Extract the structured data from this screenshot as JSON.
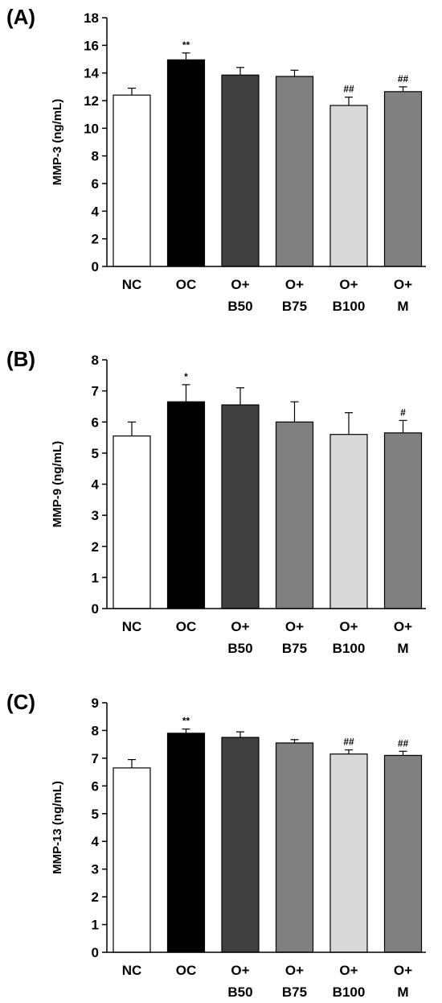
{
  "chart_data": [
    {
      "type": "bar",
      "panel_label": "(A)",
      "ylabel": "MMP-3  (ng/mL)",
      "ylim": [
        0,
        18
      ],
      "ytick_step": 2,
      "yticks": [
        "0",
        "2",
        "4",
        "6",
        "8",
        "10",
        "12",
        "14",
        "16",
        "18"
      ],
      "categories": [
        [
          "NC"
        ],
        [
          "OC"
        ],
        [
          "O+",
          "B50"
        ],
        [
          "O+",
          "B75"
        ],
        [
          "O+",
          "B100"
        ],
        [
          "O+",
          "M"
        ]
      ],
      "values": [
        12.4,
        14.95,
        13.85,
        13.75,
        11.65,
        12.65
      ],
      "errors": [
        0.5,
        0.5,
        0.55,
        0.45,
        0.6,
        0.35
      ],
      "annotations": [
        "",
        "**",
        "",
        "",
        "##",
        "##"
      ],
      "colors": [
        "#ffffff",
        "#000000",
        "#404040",
        "#808080",
        "#d9d9d9",
        "#808080"
      ]
    },
    {
      "type": "bar",
      "panel_label": "(B)",
      "ylabel": "MMP-9  (ng/mL)",
      "ylim": [
        0,
        8
      ],
      "ytick_step": 1,
      "yticks": [
        "0",
        "1",
        "2",
        "3",
        "4",
        "5",
        "6",
        "7",
        "8"
      ],
      "categories": [
        [
          "NC"
        ],
        [
          "OC"
        ],
        [
          "O+",
          "B50"
        ],
        [
          "O+",
          "B75"
        ],
        [
          "O+",
          "B100"
        ],
        [
          "O+",
          "M"
        ]
      ],
      "values": [
        5.55,
        6.65,
        6.55,
        6.0,
        5.6,
        5.65
      ],
      "errors": [
        0.45,
        0.55,
        0.55,
        0.65,
        0.7,
        0.4
      ],
      "annotations": [
        "",
        "*",
        "",
        "",
        "",
        "#"
      ],
      "colors": [
        "#ffffff",
        "#000000",
        "#404040",
        "#808080",
        "#d9d9d9",
        "#808080"
      ]
    },
    {
      "type": "bar",
      "panel_label": "(C)",
      "ylabel": "MMP-13  (ng/mL)",
      "ylim": [
        0,
        9
      ],
      "ytick_step": 1,
      "yticks": [
        "0",
        "1",
        "2",
        "3",
        "4",
        "5",
        "6",
        "7",
        "8",
        "9"
      ],
      "categories": [
        [
          "NC"
        ],
        [
          "OC"
        ],
        [
          "O+",
          "B50"
        ],
        [
          "O+",
          "B75"
        ],
        [
          "O+",
          "B100"
        ],
        [
          "O+",
          "M"
        ]
      ],
      "values": [
        6.65,
        7.9,
        7.75,
        7.55,
        7.15,
        7.1
      ],
      "errors": [
        0.3,
        0.15,
        0.2,
        0.12,
        0.15,
        0.15
      ],
      "annotations": [
        "",
        "**",
        "",
        "",
        "##",
        "##"
      ],
      "colors": [
        "#ffffff",
        "#000000",
        "#404040",
        "#808080",
        "#d9d9d9",
        "#808080"
      ]
    }
  ]
}
